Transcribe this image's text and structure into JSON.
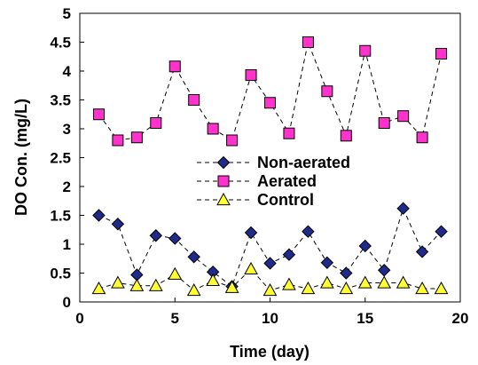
{
  "chart_data": {
    "type": "line",
    "title": "",
    "xlabel": "Time (day)",
    "ylabel": "DO Con. (mg/L)",
    "xlim": [
      0,
      20
    ],
    "ylim": [
      0,
      5
    ],
    "xticks": [
      0,
      5,
      10,
      15,
      20
    ],
    "yticks": [
      0,
      0.5,
      1,
      1.5,
      2,
      2.5,
      3,
      3.5,
      4,
      4.5,
      5
    ],
    "xtick_labels": [
      "0",
      "5",
      "10",
      "15",
      "20"
    ],
    "ytick_labels": [
      "0",
      "0.5",
      "1",
      "1.5",
      "2",
      "2.5",
      "3",
      "3.5",
      "4",
      "4.5",
      "5"
    ],
    "grid": false,
    "legend_position": "center",
    "line_style": "dashed",
    "series": [
      {
        "name": "Non-aerated",
        "marker": "diamond",
        "color": "#1f2a8a",
        "x": [
          1,
          2,
          3,
          4,
          5,
          6,
          7,
          8,
          9,
          10,
          11,
          12,
          13,
          14,
          15,
          16,
          17,
          18,
          19
        ],
        "y": [
          1.5,
          1.35,
          0.47,
          1.15,
          1.1,
          0.78,
          0.52,
          0.27,
          1.2,
          0.67,
          0.82,
          1.22,
          0.68,
          0.5,
          0.97,
          0.55,
          1.62,
          0.87,
          1.22
        ]
      },
      {
        "name": "Aerated",
        "marker": "square",
        "color": "#ff33cc",
        "x": [
          1,
          2,
          3,
          4,
          5,
          6,
          7,
          8,
          9,
          10,
          11,
          12,
          13,
          14,
          15,
          16,
          17,
          18,
          19
        ],
        "y": [
          3.25,
          2.8,
          2.85,
          3.1,
          4.08,
          3.5,
          3.0,
          2.8,
          3.93,
          3.45,
          2.92,
          4.5,
          3.65,
          2.88,
          4.35,
          3.1,
          3.22,
          2.85,
          4.3
        ]
      },
      {
        "name": "Control",
        "marker": "triangle",
        "color": "#ffff33",
        "x": [
          1,
          2,
          3,
          4,
          5,
          6,
          7,
          8,
          9,
          10,
          11,
          12,
          13,
          14,
          15,
          16,
          17,
          18,
          19
        ],
        "y": [
          0.23,
          0.33,
          0.28,
          0.28,
          0.48,
          0.2,
          0.37,
          0.25,
          0.57,
          0.2,
          0.3,
          0.23,
          0.33,
          0.23,
          0.33,
          0.33,
          0.33,
          0.23,
          0.23
        ]
      }
    ]
  }
}
